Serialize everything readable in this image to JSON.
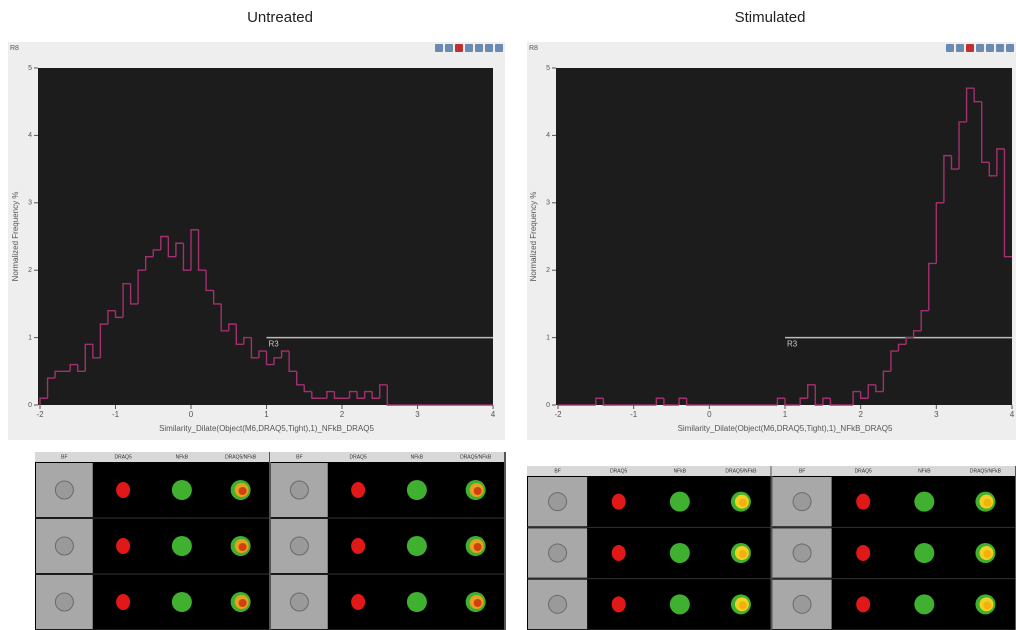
{
  "chart_data": [
    {
      "type": "histogram",
      "title": "Untreated",
      "window_label": "R8",
      "xlabel": "Similarity_Dilate(Object(M6,DRAQ5,Tight),1)_NFkB_DRAQ5",
      "ylabel": "Normalized Frequency %",
      "bins": [
        -2,
        -1.9,
        -1.8,
        -1.7,
        -1.6,
        -1.5,
        -1.4,
        -1.3,
        -1.2,
        -1.1,
        -1,
        -0.9,
        -0.8,
        -0.7,
        -0.6,
        -0.5,
        -0.4,
        -0.3,
        -0.2,
        -0.1,
        0,
        0.1,
        0.2,
        0.3,
        0.4,
        0.5,
        0.6,
        0.7,
        0.8,
        0.9,
        1,
        1.1,
        1.2,
        1.3,
        1.4,
        1.5,
        1.6,
        1.7,
        1.8,
        1.9,
        2,
        2.1,
        2.2,
        2.3,
        2.4,
        2.5,
        2.6,
        2.7,
        2.8,
        2.9,
        3,
        3.1,
        3.2,
        3.3,
        3.4,
        3.5,
        3.6,
        3.7,
        3.8,
        3.9,
        4
      ],
      "values": [
        0.1,
        0.4,
        0.5,
        0.5,
        0.6,
        0.5,
        0.9,
        0.7,
        1.2,
        1.4,
        1.3,
        1.8,
        1.5,
        2.0,
        2.2,
        2.3,
        2.5,
        2.2,
        2.4,
        2.0,
        2.6,
        2.0,
        1.7,
        1.5,
        1.1,
        1.2,
        0.9,
        1.0,
        0.7,
        0.8,
        0.6,
        0.7,
        0.8,
        0.5,
        0.3,
        0.2,
        0.1,
        0.1,
        0.2,
        0.1,
        0.1,
        0.2,
        0.1,
        0.2,
        0.1,
        0.3,
        0,
        0,
        0,
        0,
        0,
        0,
        0,
        0,
        0,
        0,
        0,
        0,
        0,
        0
      ],
      "color": "#a3306f",
      "xlim": [
        -2,
        4
      ],
      "ylim": [
        0,
        5
      ],
      "xticks": [
        -2,
        -1,
        0,
        1,
        2,
        3,
        4
      ],
      "yticks": [
        0,
        1,
        2,
        3,
        4,
        5
      ],
      "gate": {
        "label": "R3",
        "x": [
          1,
          4
        ],
        "y": 1
      },
      "gallery_headers": [
        "BF",
        "DRAQ5",
        "NFkB",
        "DRAQ5/NFkB"
      ]
    },
    {
      "type": "histogram",
      "title": "Stimulated",
      "window_label": "R8",
      "xlabel": "Similarity_Dilate(Object(M6,DRAQ5,Tight),1)_NFkB_DRAQ5",
      "ylabel": "Normalized Frequency %",
      "bins": [
        -2,
        -1.9,
        -1.8,
        -1.7,
        -1.6,
        -1.5,
        -1.4,
        -1.3,
        -1.2,
        -1.1,
        -1,
        -0.9,
        -0.8,
        -0.7,
        -0.6,
        -0.5,
        -0.4,
        -0.3,
        -0.2,
        -0.1,
        0,
        0.1,
        0.2,
        0.3,
        0.4,
        0.5,
        0.6,
        0.7,
        0.8,
        0.9,
        1,
        1.1,
        1.2,
        1.3,
        1.4,
        1.5,
        1.6,
        1.7,
        1.8,
        1.9,
        2,
        2.1,
        2.2,
        2.3,
        2.4,
        2.5,
        2.6,
        2.7,
        2.8,
        2.9,
        3,
        3.1,
        3.2,
        3.3,
        3.4,
        3.5,
        3.6,
        3.7,
        3.8,
        3.9,
        4
      ],
      "values": [
        0,
        0,
        0,
        0,
        0,
        0.1,
        0,
        0,
        0,
        0,
        0,
        0,
        0,
        0.1,
        0,
        0,
        0.1,
        0,
        0,
        0,
        0,
        0,
        0,
        0,
        0,
        0,
        0,
        0,
        0,
        0.1,
        0,
        0,
        0.1,
        0.3,
        0,
        0.1,
        0,
        0,
        0,
        0.2,
        0.1,
        0.3,
        0.2,
        0.5,
        0.8,
        0.9,
        1.0,
        1.1,
        1.4,
        2.1,
        3.0,
        3.7,
        3.5,
        4.2,
        4.7,
        4.5,
        3.6,
        3.4,
        3.8,
        2.2
      ],
      "color": "#a3306f",
      "xlim": [
        -2,
        4
      ],
      "ylim": [
        0,
        5
      ],
      "xticks": [
        -2,
        -1,
        0,
        1,
        2,
        3,
        4
      ],
      "yticks": [
        0,
        1,
        2,
        3,
        4,
        5
      ],
      "gate": {
        "label": "R3",
        "x": [
          1,
          4
        ],
        "y": 1
      },
      "gallery_headers": [
        "BF",
        "DRAQ5",
        "NFkB",
        "DRAQ5/NFkB"
      ]
    }
  ]
}
